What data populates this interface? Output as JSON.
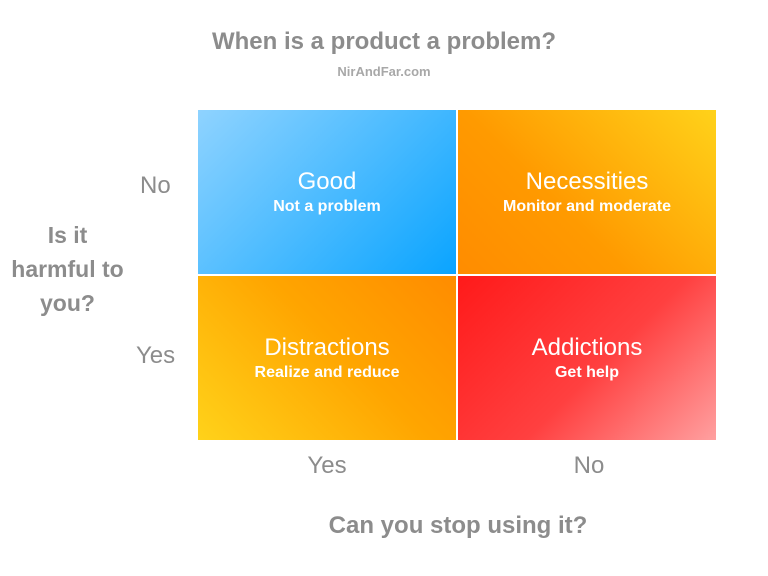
{
  "header": {
    "title": "When is a product a problem?",
    "subtitle": "NirAndFar.com"
  },
  "y_axis": {
    "label": "Is it harmful to you?",
    "ticks": [
      "No",
      "Yes"
    ]
  },
  "x_axis": {
    "label": "Can you stop using it?",
    "ticks": [
      "Yes",
      "No"
    ]
  },
  "cells": [
    {
      "title": "Good",
      "subtitle": "Not a problem"
    },
    {
      "title": "Necessities",
      "subtitle": "Monitor and moderate"
    },
    {
      "title": "Distractions",
      "subtitle": "Realize and reduce"
    },
    {
      "title": "Addictions",
      "subtitle": "Get help"
    }
  ]
}
